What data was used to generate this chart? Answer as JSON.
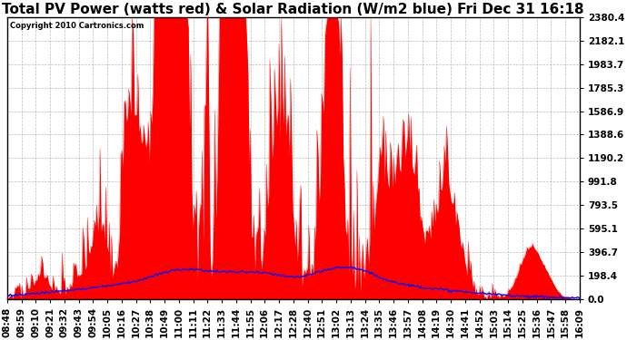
{
  "title": "Total PV Power (watts red) & Solar Radiation (W/m2 blue) Fri Dec 31 16:18",
  "copyright_text": "Copyright 2010 Cartronics.com",
  "yticks": [
    0.0,
    198.4,
    396.7,
    595.1,
    793.5,
    991.8,
    1190.2,
    1388.6,
    1586.9,
    1785.3,
    1983.7,
    2182.1,
    2380.4
  ],
  "ylim": [
    0,
    2380.4
  ],
  "bg_color": "#ffffff",
  "plot_bg_color": "#ffffff",
  "grid_color": "#aaaaaa",
  "red_color": "#ff0000",
  "blue_color": "#0000ff",
  "title_fontsize": 11,
  "tick_fontsize": 7.5,
  "x_tick_labels": [
    "08:48",
    "08:59",
    "09:10",
    "09:21",
    "09:32",
    "09:43",
    "09:54",
    "10:05",
    "10:16",
    "10:27",
    "10:38",
    "10:49",
    "11:00",
    "11:11",
    "11:22",
    "11:33",
    "11:44",
    "11:55",
    "12:06",
    "12:17",
    "12:28",
    "12:40",
    "12:51",
    "13:02",
    "13:13",
    "13:24",
    "13:35",
    "13:46",
    "13:57",
    "14:08",
    "14:19",
    "14:30",
    "14:41",
    "14:52",
    "15:03",
    "15:14",
    "15:25",
    "15:36",
    "15:47",
    "15:58",
    "16:09"
  ],
  "n_points": 500
}
